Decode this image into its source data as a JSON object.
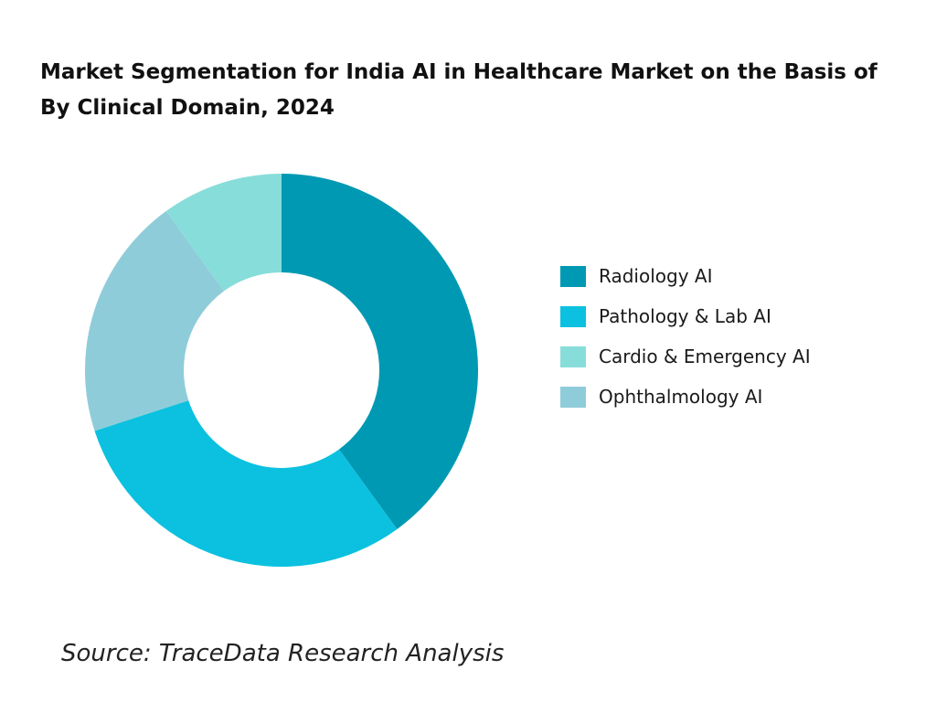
{
  "chart_data": {
    "type": "pie",
    "subtype": "donut",
    "title": "Market Segmentation for India AI in Healthcare Market on the Basis of  By Clinical Domain, 2024",
    "unit": "percent share (estimated)",
    "slices": [
      {
        "label": "Radiology AI",
        "value": 40,
        "color": "#0099B3"
      },
      {
        "label": "Pathology & Lab AI",
        "value": 30,
        "color": "#0BC1DF"
      },
      {
        "label": "Ophthalmology AI",
        "value": 20,
        "color": "#8FCCD9"
      },
      {
        "label": "Cardio & Emergency AI",
        "value": 10,
        "color": "#87DDDA"
      }
    ],
    "legend": {
      "position": "right",
      "items": [
        {
          "label": "Radiology AI",
          "color": "#0099B3"
        },
        {
          "label": "Pathology & Lab AI",
          "color": "#0BC1DF"
        },
        {
          "label": "Cardio & Emergency AI",
          "color": "#87DDDA"
        },
        {
          "label": "Ophthalmology AI",
          "color": "#8FCCD9"
        }
      ]
    },
    "source": "Source: TraceData Research Analysis"
  }
}
